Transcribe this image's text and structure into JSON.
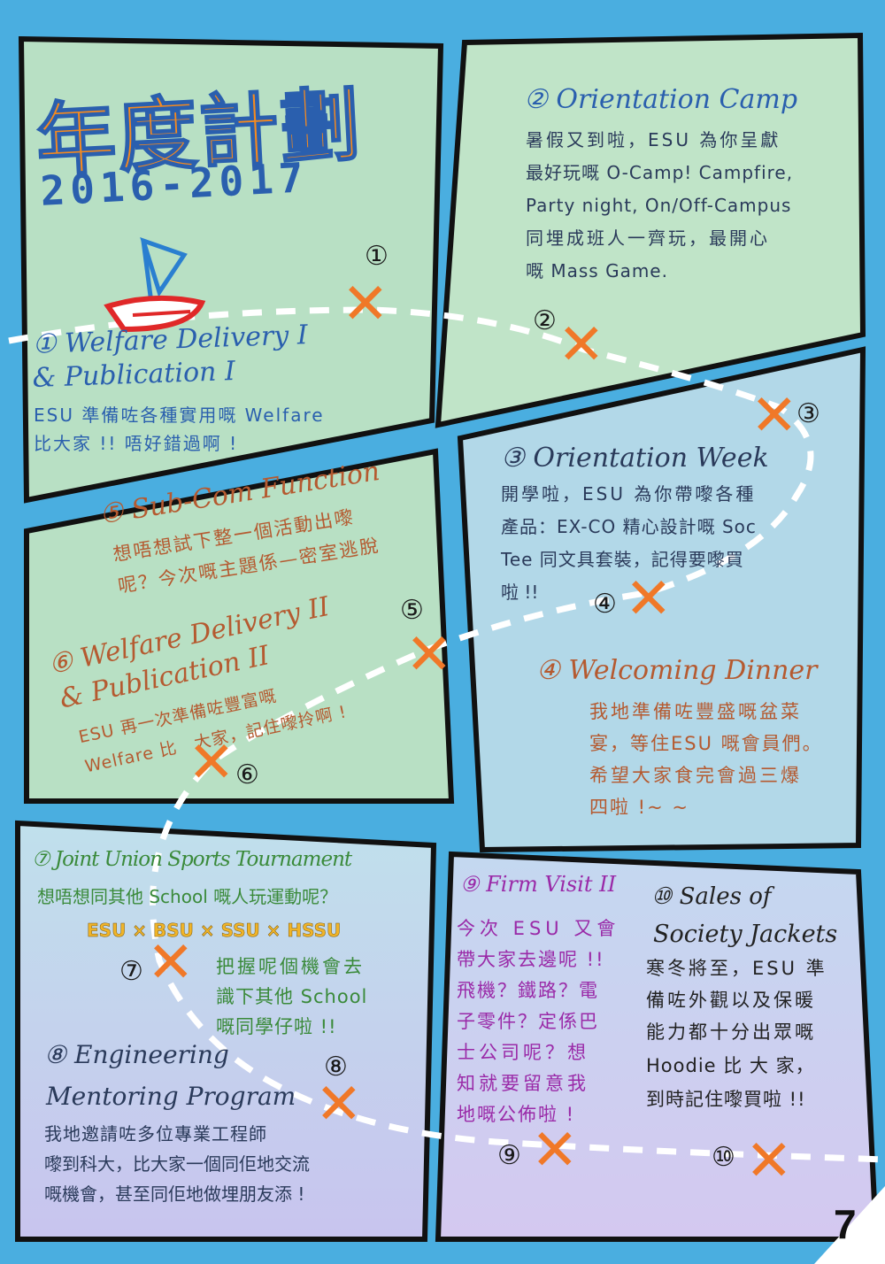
{
  "heading": {
    "title": "年度計劃",
    "years": "2016-2017"
  },
  "events": [
    {
      "id": "e1",
      "title_line1": "① Welfare Delivery I",
      "title_line2": "& Publication I",
      "body": [
        "ESU 準備咗各種實用嘅 Welfare",
        "比大家 !! 唔好錯過啊 !"
      ]
    },
    {
      "id": "e2",
      "title_line1": "② Orientation Camp",
      "body": [
        "暑假又到啦，ESU 為你呈獻",
        "最好玩嘅 O-Camp! Campfire,",
        "Party night, On/Off-Campus",
        "同埋成班人一齊玩，最開心",
        "嘅 Mass Game."
      ]
    },
    {
      "id": "e3",
      "title_line1": "③ Orientation Week",
      "body": [
        "開學啦，ESU 為你帶嚟各種",
        "產品：EX-CO 精心設計嘅 Soc",
        "Tee 同文具套裝，記得要嚟買",
        "啦 !!"
      ]
    },
    {
      "id": "e4",
      "title_line1": "④ Welcoming Dinner",
      "body": [
        "我地準備咗豐盛嘅盆菜",
        "宴，等住ESU 嘅會員們。",
        "希望大家食完會過三爆",
        "四啦 !~ ~"
      ]
    },
    {
      "id": "e5",
      "title_line1": "⑤ Sub-Com Function",
      "body": [
        "想唔想試下整一個活動出嚟",
        "呢？今次嘅主題係—密室逃脫"
      ]
    },
    {
      "id": "e6",
      "title_line1": "⑥ Welfare Delivery II",
      "title_line2": "& Publication II",
      "body": [
        "ESU 再一次準備咗豐富嘅",
        "Welfare 比　大家，記住嚟拎啊 !"
      ]
    },
    {
      "id": "e7",
      "title_line1": "⑦ Joint Union Sports Tournament",
      "body": [
        "想唔想同其他 School 嘅人玩運動呢？"
      ],
      "unions": "ESU × BSU × SSU × HSSU",
      "body2": [
        "把握呢個機會去",
        "識下其他 School",
        "嘅同學仔啦 !!"
      ]
    },
    {
      "id": "e8",
      "title_line1": "⑧ Engineering",
      "title_line2": "Mentoring Program",
      "body": [
        "我地邀請咗多位專業工程師",
        "嚟到科大，比大家一個同佢地交流",
        "嘅機會，甚至同佢地做埋朋友添 !"
      ]
    },
    {
      "id": "e9",
      "title_line1": "⑨ Firm Visit II",
      "body": [
        "今次 ESU 又會",
        "帶大家去邊呢 !!",
        "飛機？鐵路？電",
        "子零件？定係巴",
        "士公司呢？想",
        "知就要留意我",
        "地嘅公佈啦 !"
      ]
    },
    {
      "id": "e10",
      "title_line1": "⑩ Sales of",
      "title_line2": "Society Jackets",
      "body": [
        "寒冬將至，ESU 準",
        "備咗外觀以及保暖",
        "能力都十分出眾嘅",
        "Hoodie 比 大 家，",
        "到時記住嚟買啦 !!"
      ]
    }
  ],
  "markers": [
    "①",
    "②",
    "③",
    "④",
    "⑤",
    "⑥",
    "⑦",
    "⑧",
    "⑨",
    "⑩"
  ],
  "x_symbol": "✕",
  "page_number": "7",
  "colors": {
    "background": "#4aaee0",
    "panel_green": "#b8e0c4",
    "panel_blue": "#b2d8e8",
    "panel_purple": "#c8c8ec",
    "path": "#ffffff",
    "x_mark": "#f07828"
  }
}
